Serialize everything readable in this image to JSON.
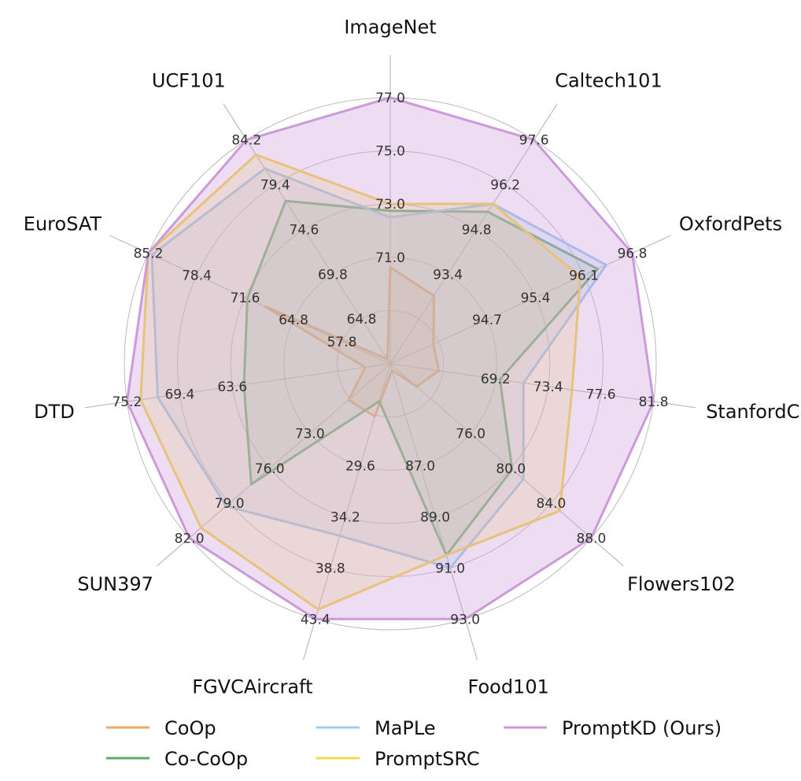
{
  "chart_data": {
    "type": "radar",
    "title": "",
    "grid": true,
    "legend_position": "bottom",
    "axes": [
      {
        "name": "ImageNet",
        "ticks": [
          "71.0",
          "73.0",
          "75.0",
          "77.0"
        ],
        "range": [
          69.0,
          77.0
        ]
      },
      {
        "name": "Caltech101",
        "ticks": [
          "93.4",
          "94.8",
          "96.2",
          "97.6"
        ],
        "range": [
          92.0,
          97.6
        ]
      },
      {
        "name": "OxfordPets",
        "ticks": [
          "94.7",
          "95.4",
          "96.1",
          "96.8"
        ],
        "range": [
          94.0,
          96.8
        ]
      },
      {
        "name": "StanfordCars",
        "ticks": [
          "69.2",
          "73.4",
          "77.6",
          "81.8"
        ],
        "range": [
          65.0,
          81.8
        ]
      },
      {
        "name": "Flowers102",
        "ticks": [
          "76.0",
          "80.0",
          "84.0",
          "88.0"
        ],
        "range": [
          72.0,
          88.0
        ]
      },
      {
        "name": "Food101",
        "ticks": [
          "87.0",
          "89.0",
          "91.0",
          "93.0"
        ],
        "range": [
          85.0,
          93.0
        ]
      },
      {
        "name": "FGVCAircraft",
        "ticks": [
          "29.6",
          "34.2",
          "38.8",
          "43.4"
        ],
        "range": [
          25.0,
          43.4
        ]
      },
      {
        "name": "SUN397",
        "ticks": [
          "73.0",
          "76.0",
          "79.0",
          "82.0"
        ],
        "range": [
          70.0,
          82.0
        ]
      },
      {
        "name": "DTD",
        "ticks": [
          "63.6",
          "69.4",
          "75.2"
        ],
        "range": [
          52.0,
          75.2
        ]
      },
      {
        "name": "EuroSAT",
        "ticks": [
          "57.8",
          "64.8",
          "71.6",
          "78.4",
          "85.2"
        ],
        "range": [
          51.0,
          85.2
        ]
      },
      {
        "name": "UCF101",
        "ticks": [
          "64.8",
          "69.8",
          "74.6",
          "79.4",
          "84.2"
        ],
        "range": [
          60.0,
          84.2
        ]
      }
    ],
    "series": [
      {
        "name": "CoOp",
        "color": "#f0a868",
        "fill": false,
        "values": [
          71.9,
          93.7,
          94.5,
          68.1,
          74.1,
          85.2,
          28.8,
          72.5,
          54.2,
          68.7,
          56.1
        ]
      },
      {
        "name": "Co-CoOp",
        "color": "#5aad6a",
        "fill": false,
        "values": [
          73.6,
          95.8,
          96.4,
          72.0,
          81.7,
          91.0,
          27.7,
          78.3,
          64.9,
          71.2,
          77.6
        ]
      },
      {
        "name": "MaPLe",
        "color": "#9cccf2",
        "fill": false,
        "values": [
          73.4,
          96.0,
          96.5,
          73.5,
          82.6,
          91.4,
          37.4,
          79.8,
          72.5,
          84.7,
          81.1
        ]
      },
      {
        "name": "PromptSRC",
        "color": "#f5d84c",
        "fill": false,
        "values": [
          73.8,
          96.0,
          96.2,
          76.6,
          85.5,
          91.0,
          42.7,
          81.3,
          74.0,
          85.4,
          82.6
        ]
      },
      {
        "name": "PromptKD (Ours)",
        "color": "#cc99d9",
        "fill": true,
        "values": [
          77.6,
          98.8,
          97.1,
          83.0,
          89.8,
          93.4,
          45.5,
          84.0,
          78.1,
          88.4,
          87.0
        ]
      }
    ],
    "fills": [
      {
        "name": "CoOp",
        "color": "#e0a080"
      },
      {
        "name": "Co-CoOp",
        "color": "#8fbf8f"
      }
    ]
  }
}
